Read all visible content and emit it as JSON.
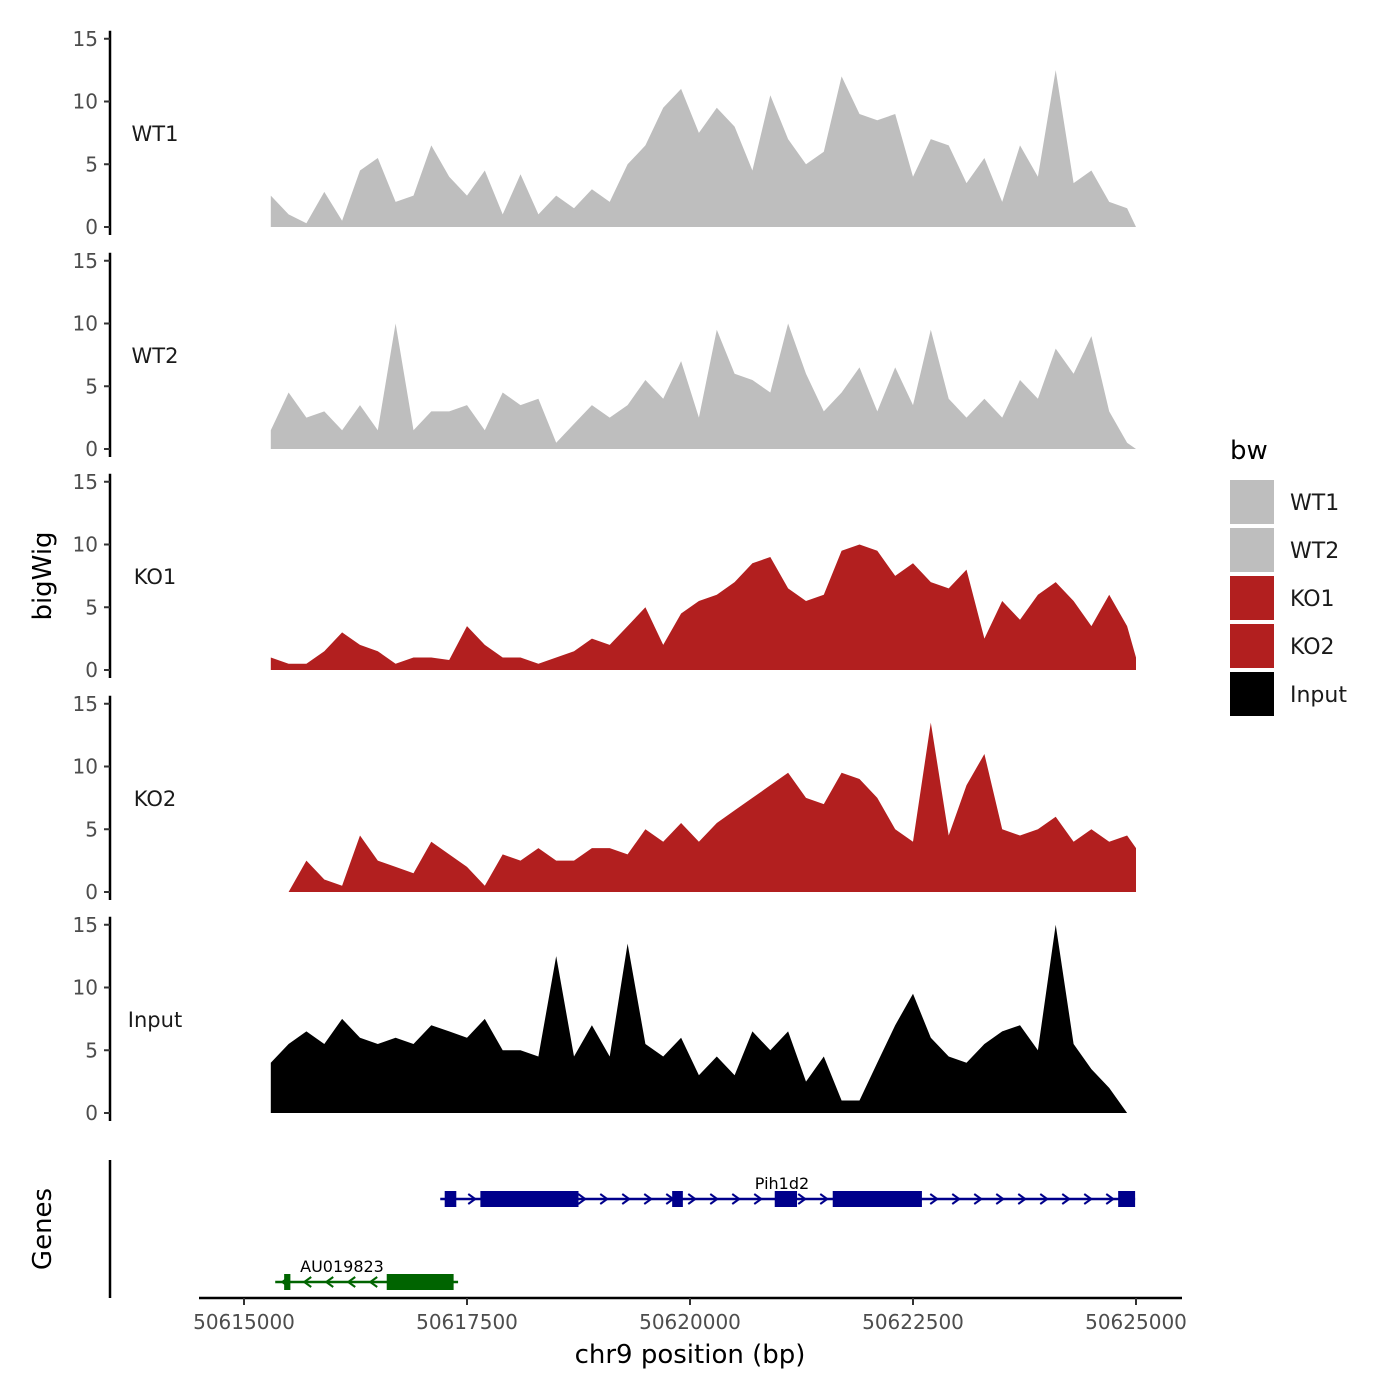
{
  "chart_data": {
    "type": "area",
    "title": "",
    "xlabel": "chr9 position (bp)",
    "ylabel": "bigWig",
    "genes_label": "Genes",
    "xlim": [
      50614800,
      50625200
    ],
    "x_ticks": [
      50615000,
      50617500,
      50620000,
      50622500,
      50625000
    ],
    "x_tick_labels": [
      "50615000",
      "50617500",
      "50620000",
      "50622500",
      "50625000"
    ],
    "ylim": [
      0,
      15
    ],
    "y_ticks": [
      0,
      5,
      10,
      15
    ],
    "y_tick_labels": [
      "0",
      "5",
      "10",
      "15"
    ],
    "legend": {
      "title": "bw",
      "items": [
        {
          "label": "WT1",
          "color": "#bebebe"
        },
        {
          "label": "WT2",
          "color": "#bebebe"
        },
        {
          "label": "KO1",
          "color": "#b21f1f"
        },
        {
          "label": "KO2",
          "color": "#b21f1f"
        },
        {
          "label": "Input",
          "color": "#000000"
        }
      ]
    },
    "x": [
      50615300,
      50615500,
      50615700,
      50615900,
      50616100,
      50616300,
      50616500,
      50616700,
      50616900,
      50617100,
      50617300,
      50617500,
      50617700,
      50617900,
      50618100,
      50618300,
      50618500,
      50618700,
      50618900,
      50619100,
      50619300,
      50619500,
      50619700,
      50619900,
      50620100,
      50620300,
      50620500,
      50620700,
      50620900,
      50621100,
      50621300,
      50621500,
      50621700,
      50621900,
      50622100,
      50622300,
      50622500,
      50622700,
      50622900,
      50623100,
      50623300,
      50623500,
      50623700,
      50623900,
      50624100,
      50624300,
      50624500,
      50624700,
      50624900,
      50625000
    ],
    "series": [
      {
        "name": "WT1",
        "color": "#bebebe",
        "values": [
          2.5,
          1.0,
          0.3,
          2.8,
          0.5,
          4.5,
          5.5,
          2.0,
          2.5,
          6.5,
          4.0,
          2.5,
          4.5,
          1.0,
          4.2,
          1.0,
          2.5,
          1.5,
          3.0,
          2.0,
          5.0,
          6.5,
          9.5,
          11.0,
          7.5,
          9.5,
          8.0,
          4.5,
          10.5,
          7.0,
          5.0,
          6.0,
          12.0,
          9.0,
          8.5,
          9.0,
          4.0,
          7.0,
          6.5,
          3.5,
          5.5,
          2.0,
          6.5,
          4.0,
          12.5,
          3.5,
          4.5,
          2.0,
          1.5,
          0.0
        ]
      },
      {
        "name": "WT2",
        "color": "#bebebe",
        "values": [
          1.5,
          4.5,
          2.5,
          3.0,
          1.5,
          3.5,
          1.5,
          10.0,
          1.5,
          3.0,
          3.0,
          3.5,
          1.5,
          4.5,
          3.5,
          4.0,
          0.5,
          2.0,
          3.5,
          2.5,
          3.5,
          5.5,
          4.0,
          7.0,
          2.5,
          9.5,
          6.0,
          5.5,
          4.5,
          10.0,
          6.0,
          3.0,
          4.5,
          6.5,
          3.0,
          6.5,
          3.5,
          9.5,
          4.0,
          2.5,
          4.0,
          2.5,
          5.5,
          4.0,
          8.0,
          6.0,
          9.0,
          3.0,
          0.5,
          0.0
        ]
      },
      {
        "name": "KO1",
        "color": "#b21f1f",
        "values": [
          1.0,
          0.5,
          0.5,
          1.5,
          3.0,
          2.0,
          1.5,
          0.5,
          1.0,
          1.0,
          0.8,
          3.5,
          2.0,
          1.0,
          1.0,
          0.5,
          1.0,
          1.5,
          2.5,
          2.0,
          3.5,
          5.0,
          2.0,
          4.5,
          5.5,
          6.0,
          7.0,
          8.5,
          9.0,
          6.5,
          5.5,
          6.0,
          9.5,
          10.0,
          9.5,
          7.5,
          8.5,
          7.0,
          6.5,
          8.0,
          2.5,
          5.5,
          4.0,
          6.0,
          7.0,
          5.5,
          3.5,
          6.0,
          3.5,
          1.0
        ]
      },
      {
        "name": "KO2",
        "color": "#b21f1f",
        "values": [
          0.0,
          0.0,
          2.5,
          1.0,
          0.5,
          4.5,
          2.5,
          2.0,
          1.5,
          4.0,
          3.0,
          2.0,
          0.5,
          3.0,
          2.5,
          3.5,
          2.5,
          2.5,
          3.5,
          3.5,
          3.0,
          5.0,
          4.0,
          5.5,
          4.0,
          5.5,
          6.5,
          7.5,
          8.5,
          9.5,
          7.5,
          7.0,
          9.5,
          9.0,
          7.5,
          5.0,
          4.0,
          13.5,
          4.5,
          8.5,
          11.0,
          5.0,
          4.5,
          5.0,
          6.0,
          4.0,
          5.0,
          4.0,
          4.5,
          3.5
        ]
      },
      {
        "name": "Input",
        "color": "#000000",
        "values": [
          4.0,
          5.5,
          6.5,
          5.5,
          7.5,
          6.0,
          5.5,
          6.0,
          5.5,
          7.0,
          6.5,
          6.0,
          7.5,
          5.0,
          5.0,
          4.5,
          12.5,
          4.5,
          7.0,
          4.5,
          13.5,
          5.5,
          4.5,
          6.0,
          3.0,
          4.5,
          3.0,
          6.5,
          5.0,
          6.5,
          2.5,
          4.5,
          1.0,
          1.0,
          4.0,
          7.0,
          9.5,
          6.0,
          4.5,
          4.0,
          5.5,
          6.5,
          7.0,
          5.0,
          15.0,
          5.5,
          3.5,
          2.0,
          0.0,
          0.0
        ]
      }
    ],
    "genes": [
      {
        "name": "Pih1d2",
        "strand": "+",
        "color": "#00008b",
        "start": 50617200,
        "end": 50624990,
        "exons": [
          [
            50617250,
            50617380
          ],
          [
            50617650,
            50618750
          ],
          [
            50619800,
            50619920
          ],
          [
            50620950,
            50621200
          ],
          [
            50621600,
            50622600
          ],
          [
            50624800,
            50624990
          ]
        ]
      },
      {
        "name": "AU019823",
        "strand": "-",
        "color": "#006400",
        "start": 50615350,
        "end": 50617400,
        "exons": [
          [
            50615450,
            50615520
          ],
          [
            50616600,
            50617350
          ]
        ]
      }
    ]
  }
}
